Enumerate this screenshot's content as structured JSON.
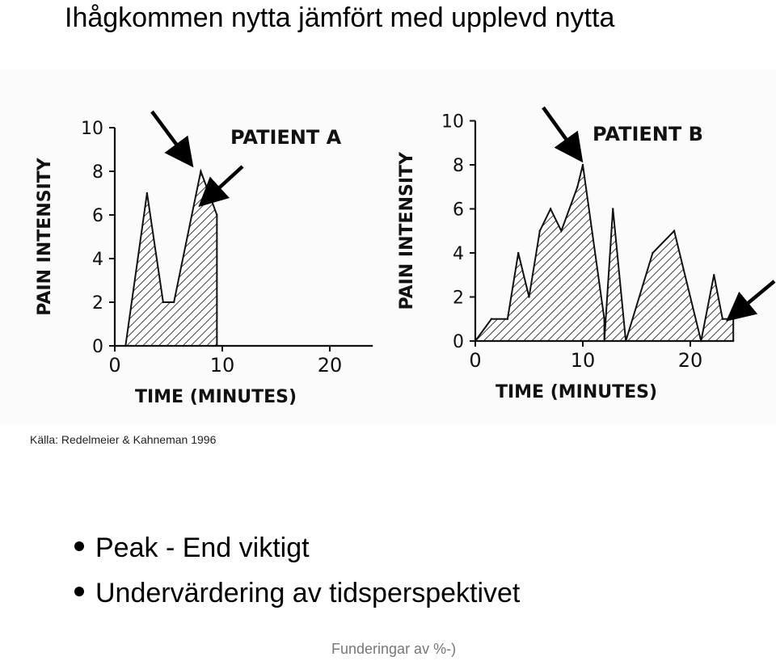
{
  "slide": {
    "title": "Ihågkommen nytta jämfört med upplevd nytta",
    "source": "Källa: Redelmeier & Kahneman 1996",
    "bullets": [
      "Peak - End viktigt",
      "Undervärdering av tidsperspektivet"
    ],
    "footer": "Funderingar av %-)"
  },
  "chart_data": [
    {
      "type": "area",
      "title": "PATIENT A",
      "xlabel": "TIME (MINUTES)",
      "ylabel": "PAIN INTENSITY",
      "xlim": [
        0,
        24
      ],
      "ylim": [
        0,
        10
      ],
      "xticks": [
        "0",
        "10",
        "20"
      ],
      "yticks": [
        "0",
        "2",
        "4",
        "6",
        "8",
        "10"
      ],
      "grid": false,
      "fill": "hatched",
      "x": [
        1,
        3,
        4.5,
        5.5,
        8,
        9.5,
        9.5
      ],
      "y": [
        0,
        7,
        2,
        2,
        8,
        6,
        0
      ],
      "annotations": [
        "arrow at peak (8, 8)",
        "arrow at end (9.5, 6)"
      ]
    },
    {
      "type": "area",
      "title": "PATIENT B",
      "xlabel": "TIME (MINUTES)",
      "ylabel": "PAIN INTENSITY",
      "xlim": [
        0,
        24
      ],
      "ylim": [
        0,
        10
      ],
      "xticks": [
        "0",
        "10",
        "20"
      ],
      "yticks": [
        "0",
        "2",
        "4",
        "6",
        "8",
        "10"
      ],
      "grid": false,
      "fill": "hatched",
      "x": [
        0,
        1.5,
        3,
        4,
        5,
        6,
        7,
        8,
        9.5,
        10,
        12,
        12,
        12.8,
        14,
        16.5,
        18.5,
        21,
        21,
        22.2,
        23,
        24,
        24
      ],
      "y": [
        0,
        1,
        1,
        4,
        2,
        5,
        6,
        5,
        7,
        8,
        1,
        0,
        6,
        0,
        4,
        5,
        0,
        0,
        3,
        1,
        1,
        0
      ],
      "annotations": [
        "arrow at peak (10, 8)",
        "arrow at end (24, 1)"
      ]
    }
  ]
}
